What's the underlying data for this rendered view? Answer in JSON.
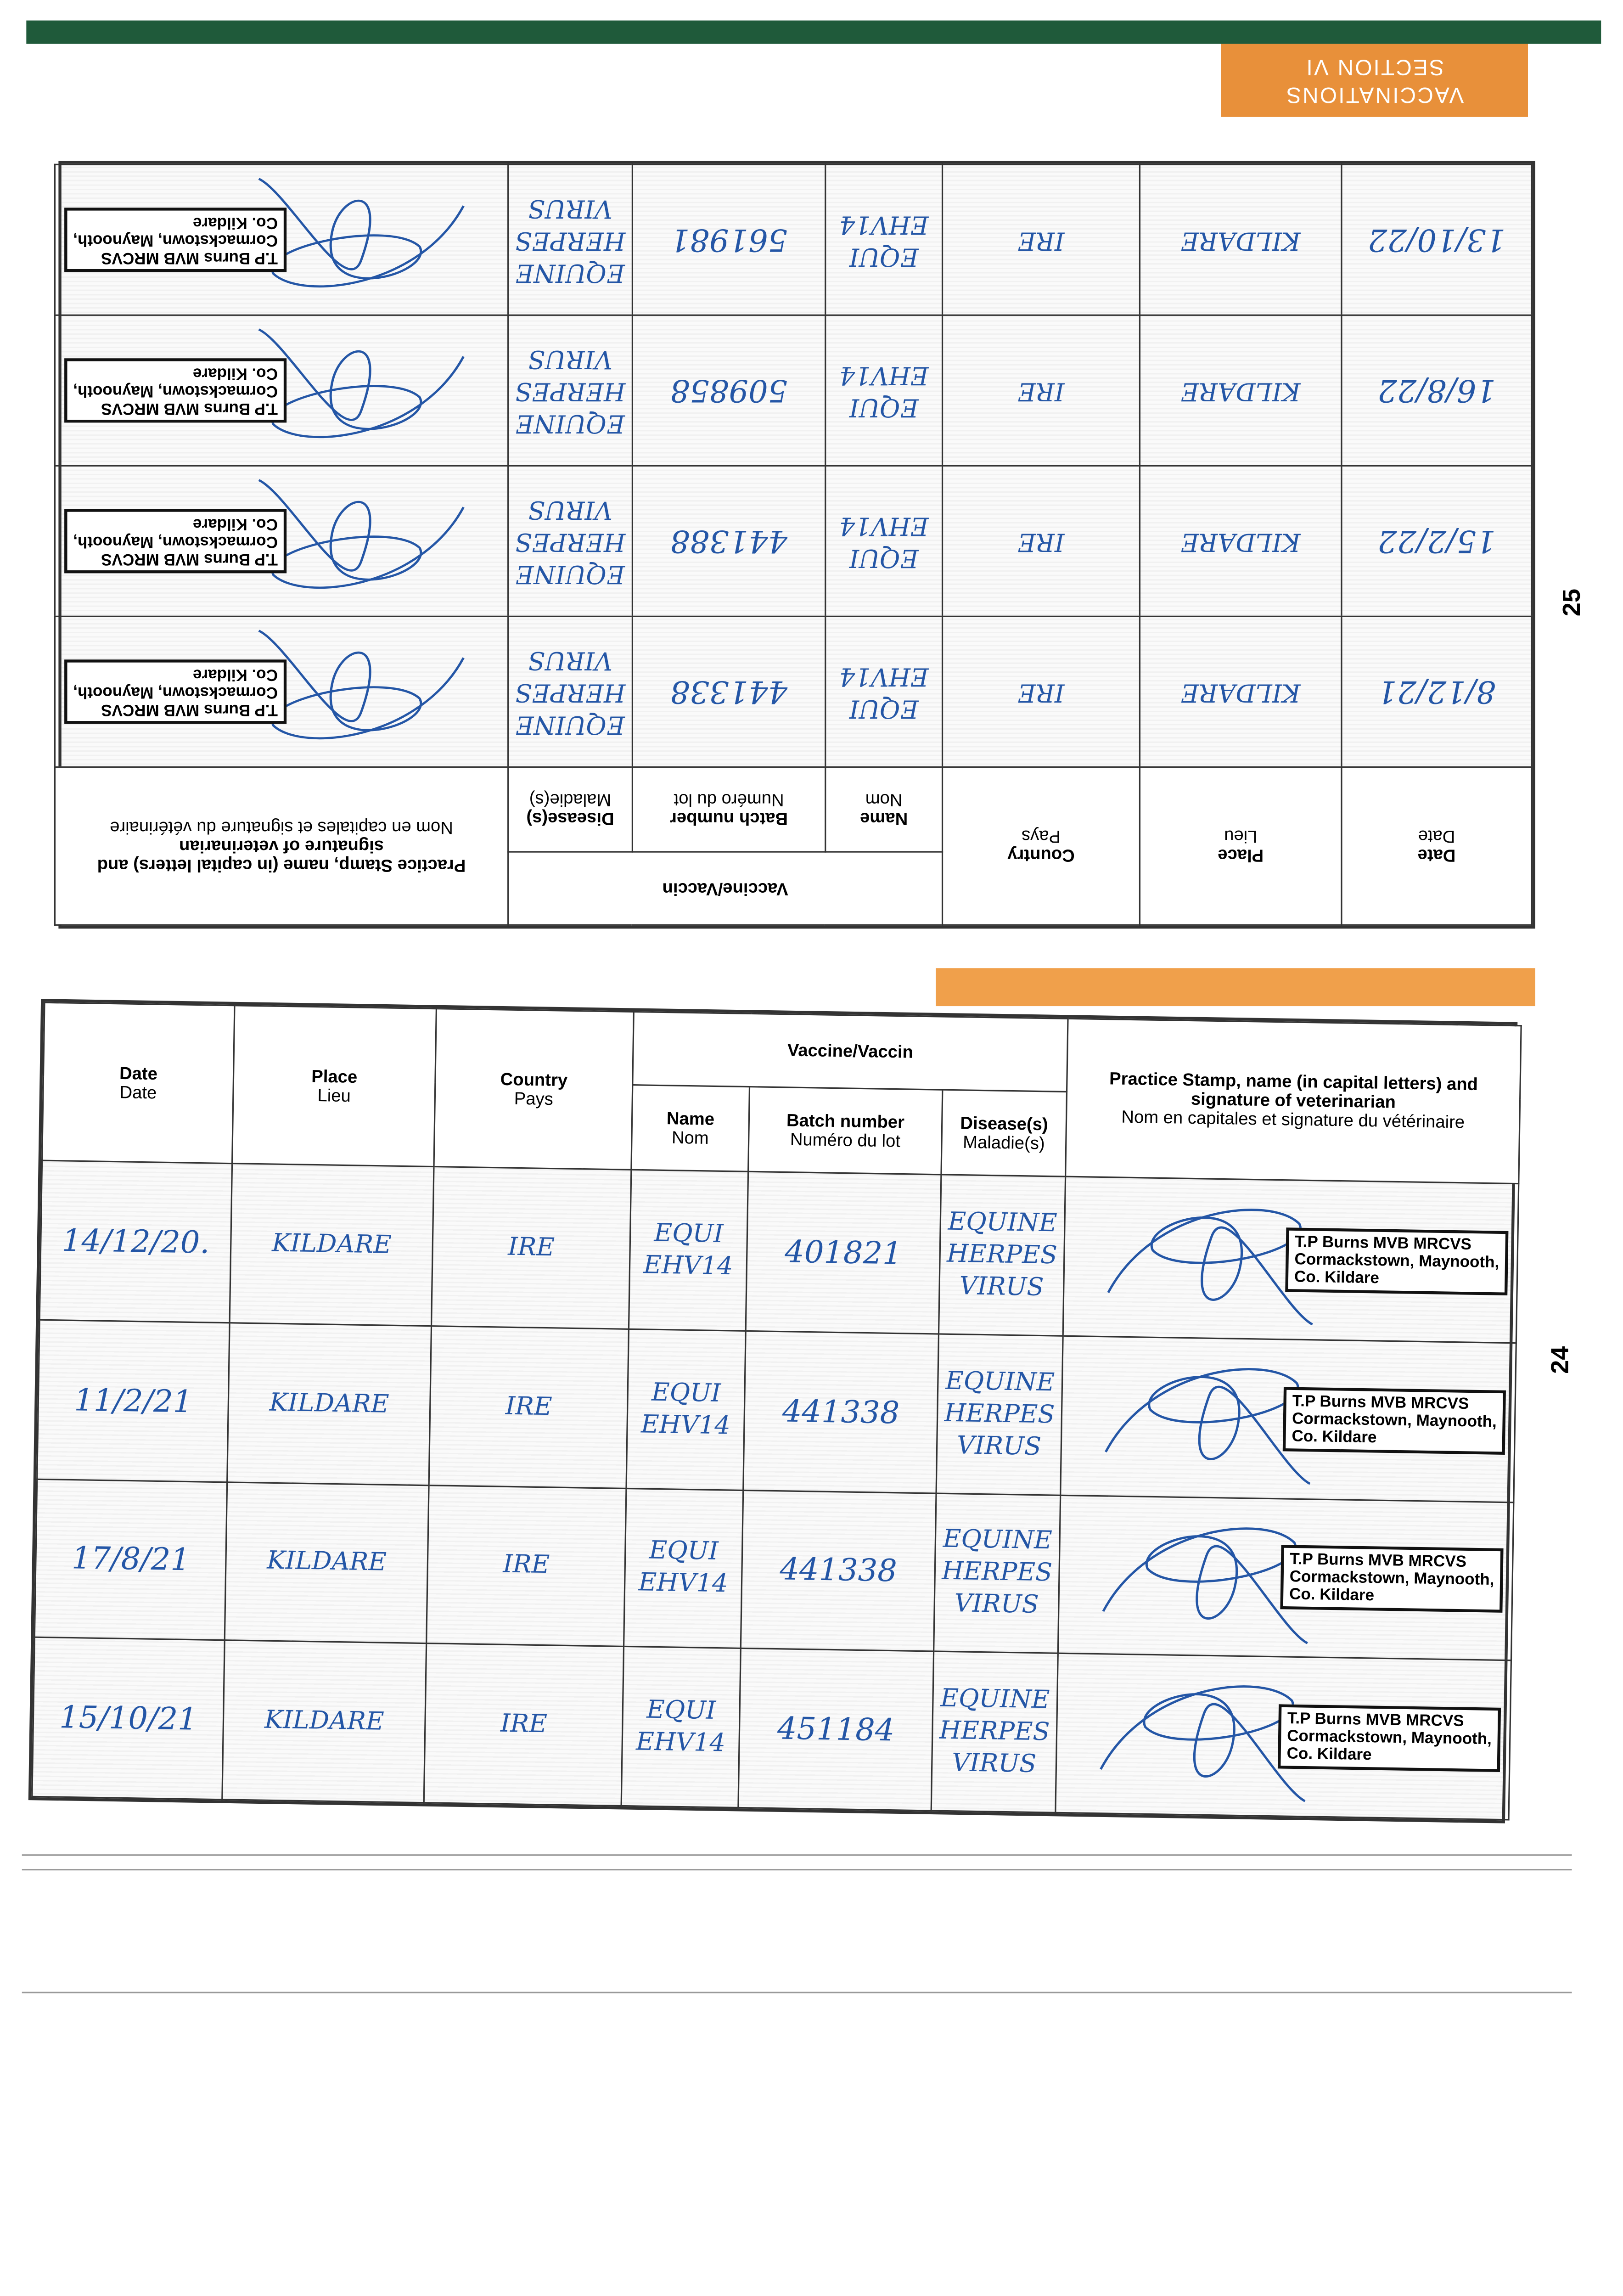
{
  "top_page": {
    "tab": [
      "VACCINATIONS",
      "SECTION VI"
    ],
    "page_number": "25",
    "headers": {
      "date": {
        "en": "Date",
        "fr": "Date"
      },
      "place": {
        "en": "Place",
        "fr": "Lieu"
      },
      "country": {
        "en": "Country",
        "fr": "Pays"
      },
      "vaccine": "Vaccine/Vaccin",
      "name": {
        "en": "Name",
        "fr": "Nom"
      },
      "batch": {
        "en": "Batch number",
        "fr": "Numéro du lot"
      },
      "disease": {
        "en": "Disease(s)",
        "fr": "Maladie(s)"
      },
      "stamp": {
        "en": "Practice Stamp, name (in capital letters) and signature of veterinarian",
        "fr": "Nom en capitales et signature du vétérinaire"
      }
    },
    "rows": [
      {
        "date": "8/12/21",
        "place": "KILDARE",
        "country": "IRE",
        "name": [
          "EQUI",
          "EHV14"
        ],
        "batch": "441338",
        "disease": [
          "EQUINE",
          "HERPES",
          "VIRUS"
        ],
        "stamp": [
          "T.P Burns MVB MRCVS",
          "Cormackstown, Maynooth,",
          "Co. Kildare"
        ]
      },
      {
        "date": "15/2/22",
        "place": "KILDARE",
        "country": "IRE",
        "name": [
          "EQUI",
          "EHV14"
        ],
        "batch": "441388",
        "disease": [
          "EQUINE",
          "HERPES",
          "VIRUS"
        ],
        "stamp": [
          "T.P Burns MVB MRCVS",
          "Cormackstown, Maynooth,",
          "Co. Kildare"
        ]
      },
      {
        "date": "16/8/22",
        "place": "KILDARE",
        "country": "IRE",
        "name": [
          "EQUI",
          "EHV14"
        ],
        "batch": "509858",
        "disease": [
          "EQUINE",
          "HERPES",
          "VIRUS"
        ],
        "stamp": [
          "T.P Burns MVB MRCVS",
          "Cormackstown, Maynooth,",
          "Co. Kildare"
        ]
      },
      {
        "date": "13/10/22",
        "place": "KILDARE",
        "country": "IRE",
        "name": [
          "EQUI",
          "EHV14"
        ],
        "batch": "561981",
        "disease": [
          "EQUINE",
          "HERPES",
          "VIRUS"
        ],
        "stamp": [
          "T.P Burns MVB MRCVS",
          "Cormackstown, Maynooth,",
          "Co. Kildare"
        ]
      }
    ]
  },
  "bottom_page": {
    "page_number": "24",
    "headers": {
      "date": {
        "en": "Date",
        "fr": "Date"
      },
      "place": {
        "en": "Place",
        "fr": "Lieu"
      },
      "country": {
        "en": "Country",
        "fr": "Pays"
      },
      "vaccine": "Vaccine/Vaccin",
      "name": {
        "en": "Name",
        "fr": "Nom"
      },
      "batch": {
        "en": "Batch number",
        "fr": "Numéro du lot"
      },
      "disease": {
        "en": "Disease(s)",
        "fr": "Maladie(s)"
      },
      "stamp": {
        "en": "Practice Stamp, name (in capital letters) and signature of veterinarian",
        "fr": "Nom en capitales et signature du vétérinaire"
      }
    },
    "rows": [
      {
        "date": "14/12/20.",
        "place": "KILDARE",
        "country": "IRE",
        "name": [
          "EQUI",
          "EHV14"
        ],
        "batch": "401821",
        "disease": [
          "EQUINE",
          "HERPES",
          "VIRUS"
        ],
        "stamp": [
          "T.P Burns MVB MRCVS",
          "Cormackstown, Maynooth,",
          "Co. Kildare"
        ]
      },
      {
        "date": "11/2/21",
        "place": "KILDARE",
        "country": "IRE",
        "name": [
          "EQUI",
          "EHV14"
        ],
        "batch": "441338",
        "disease": [
          "EQUINE",
          "HERPES",
          "VIRUS"
        ],
        "stamp": [
          "T.P Burns MVB MRCVS",
          "Cormackstown, Maynooth,",
          "Co. Kildare"
        ]
      },
      {
        "date": "17/8/21",
        "place": "KILDARE",
        "country": "IRE",
        "name": [
          "EQUI",
          "EHV14"
        ],
        "batch": "441338",
        "disease": [
          "EQUINE",
          "HERPES",
          "VIRUS"
        ],
        "stamp": [
          "T.P Burns MVB MRCVS",
          "Cormackstown, Maynooth,",
          "Co. Kildare"
        ]
      },
      {
        "date": "15/10/21",
        "place": "KILDARE",
        "country": "IRE",
        "name": [
          "EQUI",
          "EHV14"
        ],
        "batch": "451184",
        "disease": [
          "EQUINE",
          "HERPES",
          "VIRUS"
        ],
        "stamp": [
          "T.P Burns MVB MRCVS",
          "Cormackstown, Maynooth,",
          "Co. Kildare"
        ]
      }
    ]
  }
}
